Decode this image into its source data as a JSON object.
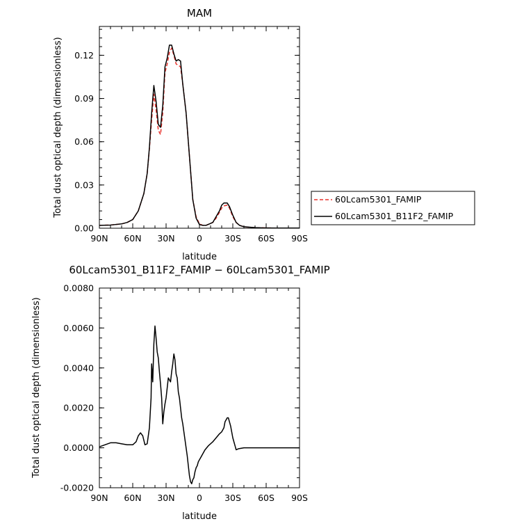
{
  "chart_data": [
    {
      "type": "line",
      "title": "MAM",
      "xlabel": "latitude",
      "ylabel": "Total dust optical depth (dimensionless)",
      "xlim": [
        90,
        -90
      ],
      "ylim": [
        0,
        0.14
      ],
      "x_ticks": [
        {
          "value": 90,
          "label": "90N"
        },
        {
          "value": 60,
          "label": "60N"
        },
        {
          "value": 30,
          "label": "30N"
        },
        {
          "value": 0,
          "label": "0"
        },
        {
          "value": -30,
          "label": "30S"
        },
        {
          "value": -60,
          "label": "60S"
        },
        {
          "value": -90,
          "label": "90S"
        }
      ],
      "y_ticks": [
        {
          "value": 0,
          "label": "0.00"
        },
        {
          "value": 0.03,
          "label": "0.03"
        },
        {
          "value": 0.06,
          "label": "0.06"
        },
        {
          "value": 0.09,
          "label": "0.09"
        },
        {
          "value": 0.12,
          "label": "0.12"
        }
      ],
      "legend": {
        "position": "outside-right-bottom"
      },
      "series": [
        {
          "name": "60Lcam5301_FAMIP",
          "color": "#e8302a",
          "dash": "dashed",
          "x": [
            90,
            80,
            70,
            65,
            60,
            55,
            50,
            47,
            45,
            43,
            41,
            39,
            37,
            35,
            33,
            31,
            29,
            27,
            25,
            23,
            21,
            19,
            17,
            15,
            12,
            9,
            6,
            3,
            0,
            -3,
            -6,
            -9,
            -12,
            -15,
            -18,
            -20,
            -22,
            -25,
            -27,
            -30,
            -33,
            -36,
            -40,
            -50,
            -60,
            -70,
            -80,
            -90
          ],
          "values": [
            0.002,
            0.0022,
            0.003,
            0.004,
            0.006,
            0.012,
            0.024,
            0.038,
            0.055,
            0.075,
            0.093,
            0.082,
            0.068,
            0.065,
            0.08,
            0.108,
            0.114,
            0.122,
            0.125,
            0.12,
            0.114,
            0.113,
            0.112,
            0.1,
            0.08,
            0.05,
            0.02,
            0.008,
            0.003,
            0.002,
            0.002,
            0.003,
            0.004,
            0.007,
            0.011,
            0.014,
            0.0155,
            0.016,
            0.014,
            0.008,
            0.004,
            0.002,
            0.001,
            0.0004,
            0.0002,
            0.0001,
            0.0001,
            0.0001
          ]
        },
        {
          "name": "60Lcam5301_B11F2_FAMIP",
          "color": "#000000",
          "dash": "solid",
          "x": [
            90,
            80,
            70,
            65,
            60,
            55,
            50,
            47,
            45,
            43,
            41,
            39,
            37,
            35,
            33,
            31,
            29,
            27,
            25,
            23,
            21,
            19,
            17,
            15,
            12,
            9,
            6,
            3,
            0,
            -3,
            -6,
            -9,
            -12,
            -15,
            -18,
            -20,
            -22,
            -25,
            -27,
            -30,
            -33,
            -36,
            -40,
            -50,
            -60,
            -70,
            -80,
            -90
          ],
          "values": [
            0.002,
            0.0022,
            0.003,
            0.004,
            0.006,
            0.012,
            0.024,
            0.038,
            0.056,
            0.08,
            0.099,
            0.088,
            0.072,
            0.07,
            0.085,
            0.112,
            0.118,
            0.127,
            0.127,
            0.121,
            0.116,
            0.117,
            0.116,
            0.1,
            0.08,
            0.05,
            0.02,
            0.007,
            0.0025,
            0.002,
            0.002,
            0.003,
            0.004,
            0.008,
            0.012,
            0.016,
            0.0175,
            0.0175,
            0.015,
            0.009,
            0.004,
            0.002,
            0.001,
            0.0004,
            0.0002,
            0.0001,
            0.0001,
            0.0001
          ]
        }
      ]
    },
    {
      "type": "line",
      "title": "60Lcam5301_B11F2_FAMIP − 60Lcam5301_FAMIP",
      "xlabel": "latitude",
      "ylabel": "Total dust optical depth (dimensionless)",
      "xlim": [
        90,
        -90
      ],
      "ylim": [
        -0.002,
        0.008
      ],
      "x_ticks": [
        {
          "value": 90,
          "label": "90N"
        },
        {
          "value": 60,
          "label": "60N"
        },
        {
          "value": 30,
          "label": "30N"
        },
        {
          "value": 0,
          "label": "0"
        },
        {
          "value": -30,
          "label": "30S"
        },
        {
          "value": -60,
          "label": "60S"
        },
        {
          "value": -90,
          "label": "90S"
        }
      ],
      "y_ticks": [
        {
          "value": -0.002,
          "label": "-0.0020"
        },
        {
          "value": 0,
          "label": "0.0000"
        },
        {
          "value": 0.002,
          "label": "0.0020"
        },
        {
          "value": 0.004,
          "label": "0.0040"
        },
        {
          "value": 0.006,
          "label": "0.0060"
        },
        {
          "value": 0.008,
          "label": "0.0080"
        }
      ],
      "series": [
        {
          "color": "#000000",
          "dash": "solid",
          "x": [
            90,
            85,
            80,
            75,
            70,
            65,
            60,
            57,
            55,
            53,
            51,
            49,
            47,
            45,
            43.5,
            43,
            42,
            41,
            40,
            39,
            38,
            37,
            36,
            35,
            34,
            33,
            32,
            31,
            30,
            29,
            28,
            27,
            26,
            25,
            24,
            23,
            22,
            21,
            20,
            19,
            18,
            17,
            16,
            15,
            14,
            13,
            12,
            11,
            10,
            9,
            8,
            7,
            6,
            5,
            4,
            3,
            2,
            1,
            0,
            -1,
            -3,
            -5,
            -8,
            -12,
            -15,
            -18,
            -20,
            -22,
            -23,
            -24,
            -25,
            -26,
            -27,
            -28,
            -29,
            -30,
            -31,
            -32,
            -33,
            -35,
            -40,
            -50,
            -60,
            -70,
            -80,
            -90
          ],
          "values": [
            5e-05,
            0.00015,
            0.00025,
            0.00025,
            0.0002,
            0.00015,
            0.00015,
            0.0003,
            0.0006,
            0.00075,
            0.0006,
            0.00015,
            0.0002,
            0.001,
            0.0025,
            0.0042,
            0.0033,
            0.0052,
            0.0061,
            0.0055,
            0.0048,
            0.0045,
            0.0038,
            0.0032,
            0.0025,
            0.0012,
            0.0018,
            0.0022,
            0.0025,
            0.003,
            0.0035,
            0.0034,
            0.0033,
            0.0038,
            0.0042,
            0.0047,
            0.0044,
            0.0037,
            0.0035,
            0.0028,
            0.0025,
            0.002,
            0.0015,
            0.0012,
            0.0008,
            0.0004,
            0.0,
            -0.0004,
            -0.0009,
            -0.0014,
            -0.0017,
            -0.0018,
            -0.0016,
            -0.0015,
            -0.0012,
            -0.001,
            -0.0009,
            -0.0007,
            -0.0006,
            -0.0005,
            -0.0003,
            -0.0001,
            0.0001,
            0.0003,
            0.0005,
            0.0007,
            0.0008,
            0.001,
            0.0013,
            0.0014,
            0.0015,
            0.0015,
            0.0013,
            0.0011,
            0.0008,
            0.0005,
            0.0003,
            0.0001,
            -0.0001,
            -5e-05,
            0.0,
            0.0,
            0.0,
            0.0,
            0.0,
            0.0
          ]
        }
      ]
    }
  ]
}
